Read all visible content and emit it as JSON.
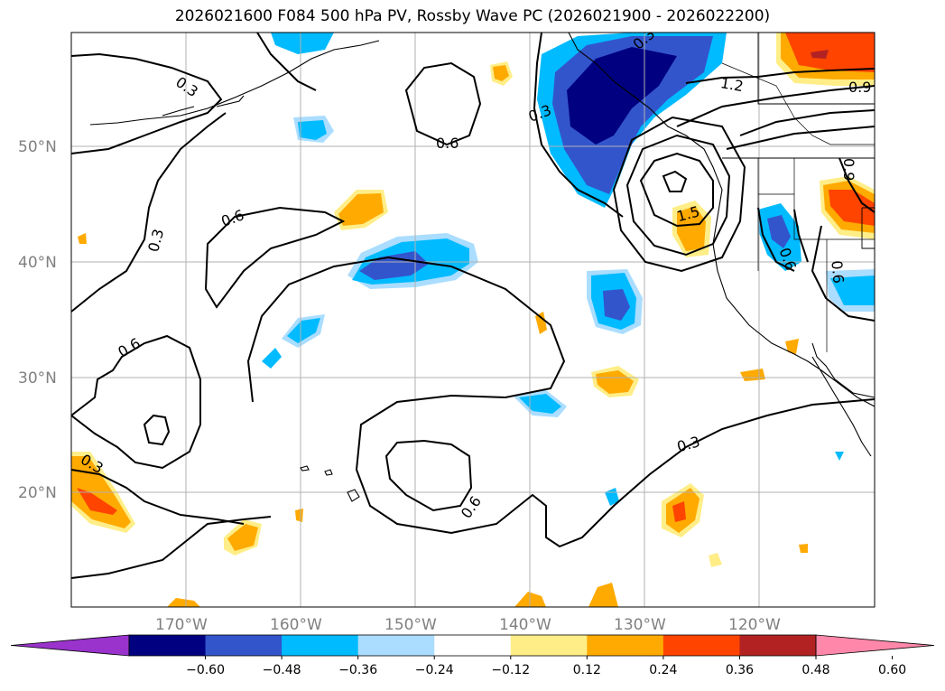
{
  "title": "2026021600 F084 500 hPa PV, Rossby Wave PC (2026021900 - 2026022200)",
  "map": {
    "lat_labels": [
      "50°N",
      "40°N",
      "30°N",
      "20°N"
    ],
    "lon_labels": [
      "170°W",
      "160°W",
      "150°W",
      "140°W",
      "130°W",
      "120°W"
    ],
    "contour_labels": [
      "0.3",
      "0.3",
      "0.3",
      "0.3",
      "0.3",
      "0.6",
      "0.6",
      "0.6",
      "0.6",
      "0.6",
      "0.6",
      "0.9",
      "0.9",
      "1.2",
      "1.5",
      "0.3"
    ]
  },
  "colorbar": {
    "ticks": [
      "−0.60",
      "−0.48",
      "−0.36",
      "−0.24",
      "−0.12",
      "0.12",
      "0.24",
      "0.36",
      "0.48",
      "0.60"
    ],
    "colors": [
      "#9933cc",
      "#000080",
      "#3355cc",
      "#00bbff",
      "#aaddff",
      "#ffffff",
      "#ffee88",
      "#ffaa00",
      "#ff4400",
      "#b22222",
      "#ff88aa"
    ]
  }
}
